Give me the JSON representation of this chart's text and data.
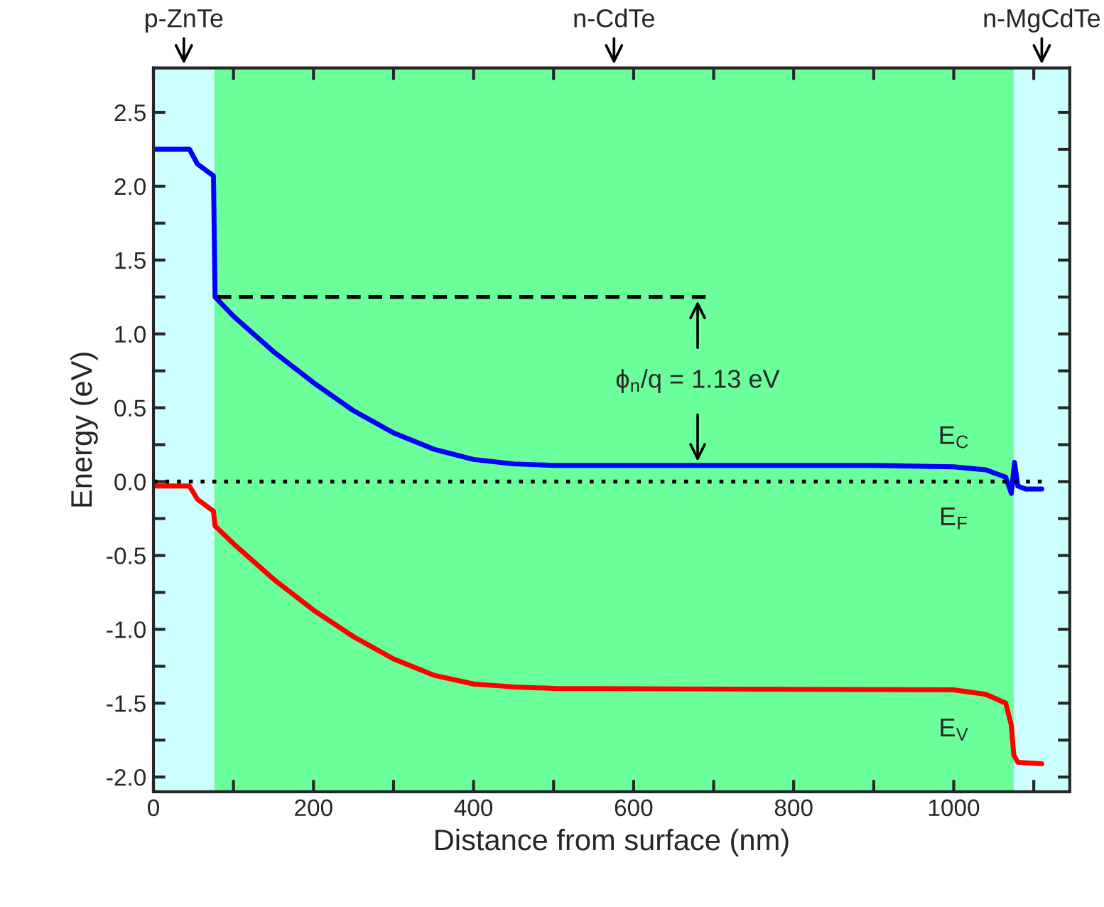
{
  "chart_data": {
    "type": "line",
    "xlabel": "Distance from surface (nm)",
    "ylabel": "Energy (eV)",
    "xlim": [
      0,
      1145
    ],
    "ylim": [
      -2.1,
      2.8
    ],
    "xticks": [
      0,
      {
        "value": 100,
        "label": null
      },
      200,
      {
        "value": 300,
        "label": null
      },
      400,
      {
        "value": 500,
        "label": null
      },
      600,
      {
        "value": 700,
        "label": null
      },
      800,
      {
        "value": 900,
        "label": null
      },
      1000,
      {
        "value": 1100,
        "label": null
      }
    ],
    "yticks": [
      {
        "value": -2,
        "label": "-2.0"
      },
      {
        "value": -1.75,
        "label": null
      },
      -1.5,
      {
        "value": -1.25,
        "label": null
      },
      {
        "value": -1,
        "label": "-1.0"
      },
      {
        "value": -0.75,
        "label": null
      },
      -0.5,
      {
        "value": -0.25,
        "label": null
      },
      {
        "value": 0,
        "label": "0.0"
      },
      {
        "value": 0.25,
        "label": null
      },
      0.5,
      {
        "value": 0.75,
        "label": null
      },
      {
        "value": 1,
        "label": "1.0"
      },
      {
        "value": 1.25,
        "label": null
      },
      1.5,
      {
        "value": 1.75,
        "label": null
      },
      {
        "value": 2,
        "label": "2.0"
      },
      {
        "value": 2.25,
        "label": null
      },
      2.5
    ],
    "grid": false,
    "legend": false,
    "bands": [
      {
        "axis": "x",
        "from": 0,
        "to": 76,
        "label": "p-ZnTe",
        "color": "#ccffff"
      },
      {
        "axis": "x",
        "from": 76,
        "to": 1075,
        "label": "n-CdTe",
        "color": "#6bff9c"
      },
      {
        "axis": "x",
        "from": 1075,
        "to": 1145,
        "label": "n-MgCdTe",
        "color": "#ccffff"
      }
    ],
    "series": [
      {
        "color": "#0000ff",
        "line_style": "solid",
        "x": [
          0,
          45,
          55,
          75,
          77,
          100,
          150,
          200,
          250,
          300,
          350,
          400,
          450,
          500,
          900,
          1000,
          1040,
          1065,
          1072,
          1076,
          1080,
          1090,
          1110
        ],
        "values": [
          2.25,
          2.25,
          2.15,
          2.07,
          1.25,
          1.12,
          0.88,
          0.67,
          0.48,
          0.33,
          0.22,
          0.15,
          0.12,
          0.11,
          0.11,
          0.1,
          0.08,
          0.03,
          -0.08,
          0.13,
          -0.03,
          -0.05,
          -0.05
        ]
      },
      {
        "color": "#ff0000",
        "line_style": "solid",
        "x": [
          0,
          45,
          55,
          75,
          77,
          100,
          150,
          200,
          250,
          300,
          350,
          400,
          450,
          500,
          1000,
          1040,
          1065,
          1072,
          1075,
          1080,
          1110
        ],
        "values": [
          -0.03,
          -0.03,
          -0.12,
          -0.2,
          -0.3,
          -0.42,
          -0.66,
          -0.87,
          -1.05,
          -1.2,
          -1.31,
          -1.37,
          -1.39,
          -1.4,
          -1.41,
          -1.44,
          -1.5,
          -1.65,
          -1.85,
          -1.9,
          -1.91
        ]
      },
      {
        "color": "#000000",
        "line_style": "dotted",
        "x": [
          0,
          1110
        ],
        "values": [
          0,
          0
        ]
      },
      {
        "color": "#000000",
        "line_style": "dashed",
        "x": [
          690,
          80
        ],
        "values": [
          1.25,
          1.25
        ]
      }
    ],
    "annotations": [
      "ϕ$_{n}$/q = 1.13 eV",
      "E$_{C}$",
      "E$_{F}$",
      "E$_{V}$"
    ]
  }
}
